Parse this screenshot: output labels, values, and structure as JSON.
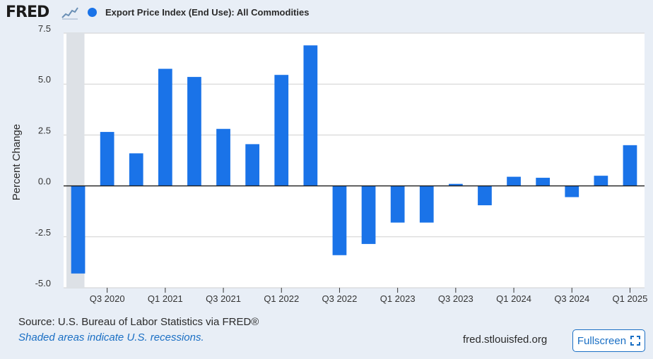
{
  "header": {
    "logo_text": "FRED",
    "series_label": "Export Price Index (End Use): All Commodities",
    "series_color": "#1a73e8"
  },
  "chart_data": {
    "type": "bar",
    "title": "",
    "ylabel": "Percent Change",
    "xlabel": "",
    "ylim": [
      -5.0,
      7.5
    ],
    "yticks": [
      "7.5",
      "5.0",
      "2.5",
      "0.0",
      "-2.5",
      "-5.0"
    ],
    "categories": [
      "Q2 2020",
      "Q3 2020",
      "Q4 2020",
      "Q1 2021",
      "Q2 2021",
      "Q3 2021",
      "Q4 2021",
      "Q1 2022",
      "Q2 2022",
      "Q3 2022",
      "Q4 2022",
      "Q1 2023",
      "Q2 2023",
      "Q3 2023",
      "Q4 2023",
      "Q1 2024",
      "Q2 2024",
      "Q3 2024",
      "Q4 2024",
      "Q1 2025"
    ],
    "xtick_labels": [
      "Q3 2020",
      "Q1 2021",
      "Q3 2021",
      "Q1 2022",
      "Q3 2022",
      "Q1 2023",
      "Q3 2023",
      "Q1 2024",
      "Q3 2024",
      "Q1 2025"
    ],
    "series": [
      {
        "name": "Export Price Index (End Use): All Commodities",
        "color": "#1a73e8",
        "values": [
          -4.3,
          2.65,
          1.6,
          5.75,
          5.35,
          2.8,
          2.05,
          5.45,
          6.9,
          -3.4,
          -2.85,
          -1.8,
          -1.8,
          0.1,
          -0.95,
          0.45,
          0.4,
          -0.55,
          0.5,
          2.0
        ]
      }
    ],
    "recession_shading": "Q2 2020",
    "grid": true
  },
  "footer": {
    "source": "Source: U.S. Bureau of Labor Statistics via FRED®",
    "note": "Shaded areas indicate U.S. recessions.",
    "site": "fred.stlouisfed.org",
    "fullscreen_label": "Fullscreen"
  }
}
